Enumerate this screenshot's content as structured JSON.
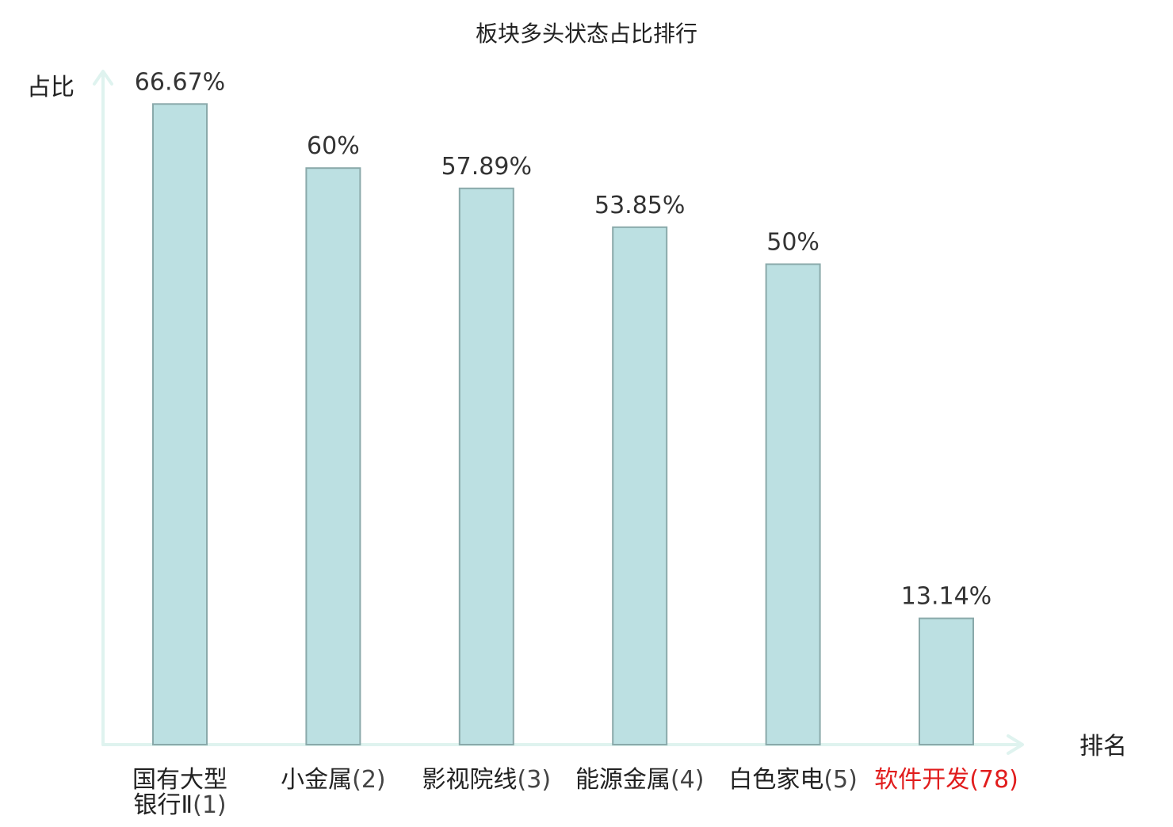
{
  "chart_data": {
    "type": "bar",
    "title": "板块多头状态占比排行",
    "ylabel": "占比",
    "xlabel": "排名",
    "categories": [
      {
        "name": "国有大型银行Ⅱ",
        "rank": "(1)",
        "highlight": false
      },
      {
        "name": "小金属",
        "rank": "(2)",
        "highlight": false
      },
      {
        "name": "影视院线",
        "rank": "(3)",
        "highlight": false
      },
      {
        "name": "能源金属",
        "rank": "(4)",
        "highlight": false
      },
      {
        "name": "白色家电",
        "rank": "(5)",
        "highlight": false
      },
      {
        "name": "软件开发",
        "rank": "(78)",
        "highlight": true
      }
    ],
    "values": [
      66.67,
      60,
      57.89,
      53.85,
      50,
      13.14
    ],
    "value_labels": [
      "66.67%",
      "60%",
      "57.89%",
      "53.85%",
      "50%",
      "13.14%"
    ],
    "ylim": [
      0,
      70
    ],
    "grid": false,
    "colors": {
      "bar_fill": "#bce0e2",
      "bar_stroke": "#8aa9aa",
      "axis": "#dff3ef",
      "highlight": "#e11d1d",
      "text": "#222222",
      "value_text": "#333333"
    }
  }
}
